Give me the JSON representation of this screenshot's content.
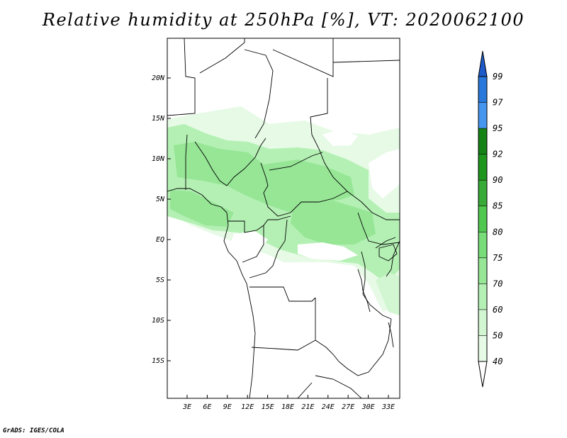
{
  "title": "Relative humidity at 250hPa [%], VT: 2020062100",
  "credit": "GrADS: IGES/COLA",
  "map": {
    "lat_labels": [
      "20N",
      "15N",
      "10N",
      "5N",
      "EQ",
      "5S",
      "10S",
      "15S"
    ],
    "lon_labels": [
      "3E",
      "6E",
      "9E",
      "12E",
      "15E",
      "18E",
      "21E",
      "24E",
      "27E",
      "30E",
      "33E"
    ]
  },
  "colorbar": {
    "labels": [
      "40",
      "50",
      "60",
      "70",
      "75",
      "80",
      "85",
      "90",
      "92",
      "95",
      "97",
      "99"
    ],
    "colors": [
      "#ffffff",
      "#e6fae6",
      "#d2f5d2",
      "#b4f0b4",
      "#96e696",
      "#78dc78",
      "#50c850",
      "#37aa37",
      "#1e961e",
      "#148214",
      "#4696f0",
      "#2878dc",
      "#1e5ac8"
    ]
  },
  "chart_data": {
    "type": "heatmap",
    "title": "Relative humidity at 250hPa [%], VT: 2020062100",
    "variable": "Relative humidity",
    "units": "%",
    "level": "250hPa",
    "valid_time": "2020062100",
    "lon_range": [
      0,
      35
    ],
    "lat_range": [
      -19,
      24
    ],
    "contour_levels": [
      40,
      50,
      60,
      70,
      75,
      80,
      85,
      90,
      92,
      95,
      97,
      99
    ],
    "lat_ticks": [
      "20N",
      "15N",
      "10N",
      "5N",
      "EQ",
      "5S",
      "10S",
      "15S"
    ],
    "lon_ticks": [
      "3E",
      "6E",
      "9E",
      "12E",
      "15E",
      "18E",
      "21E",
      "24E",
      "27E",
      "30E",
      "33E"
    ]
  }
}
